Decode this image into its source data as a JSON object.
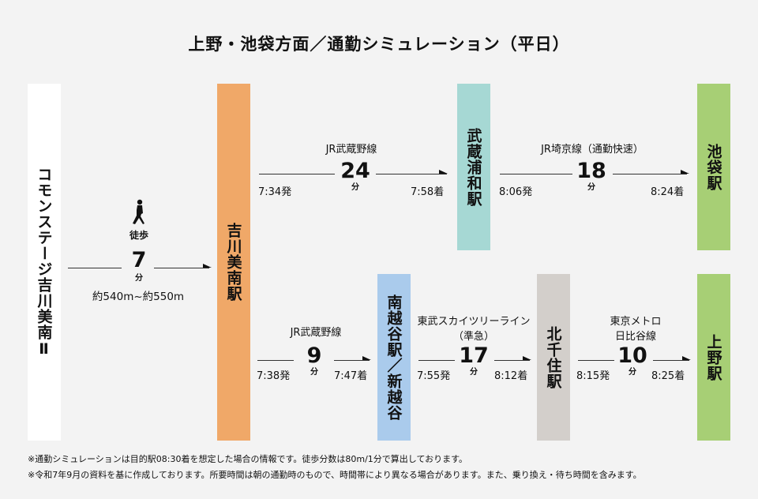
{
  "title": "上野・池袋方面／通勤シミュレーション（平日）",
  "colors": {
    "origin": "#ffffff",
    "yoshikawaminami": "#f0a868",
    "musashiurawa": "#a6d8d4",
    "ikebukuro": "#a7cf75",
    "minamikoshigaya": "#aacbec",
    "kitasenju": "#d3cfcb",
    "ueno": "#a7cf75"
  },
  "stations": {
    "origin": "コモンステージ吉川美南Ⅱ",
    "yoshikawaminami": "吉川美南駅",
    "musashiurawa": "武蔵浦和駅",
    "ikebukuro": "池袋駅",
    "minamikoshigaya": "南越谷駅／新越谷",
    "kitasenju": "北千住駅",
    "ueno": "上野駅"
  },
  "walk": {
    "icon": "walking-person-icon",
    "label": "徒歩",
    "minutes": "7",
    "unit": "分",
    "distance": "約540m~約550m"
  },
  "segments": {
    "musashino_up": {
      "line": "JR武蔵野線",
      "minutes": "24",
      "unit": "分",
      "depart": "7:34発",
      "arrive": "7:58着"
    },
    "saikyo": {
      "line": "JR埼京線（通勤快速）",
      "minutes": "18",
      "unit": "分",
      "depart": "8:06発",
      "arrive": "8:24着"
    },
    "musashino_down": {
      "line": "JR武蔵野線",
      "minutes": "9",
      "unit": "分",
      "depart": "7:38発",
      "arrive": "7:47着"
    },
    "skytree": {
      "line1": "東武スカイツリーライン",
      "line2": "（準急）",
      "minutes": "17",
      "unit": "分",
      "depart": "7:55発",
      "arrive": "8:12着"
    },
    "hibiya": {
      "line1": "東京メトロ",
      "line2": "日比谷線",
      "minutes": "10",
      "unit": "分",
      "depart": "8:15発",
      "arrive": "8:25着"
    }
  },
  "notes": [
    "※通勤シミュレーションは目的駅08:30着を想定した場合の情報です。徒歩分数は80m/1分で算出しております。",
    "※令和7年9月の資料を基に作成しております。所要時間は朝の通勤時のもので、時間帯により異なる場合があります。また、乗り換え・待ち時間を含みます。"
  ]
}
